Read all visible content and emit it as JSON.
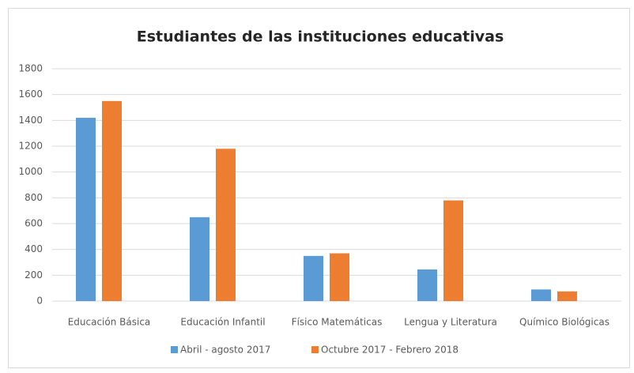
{
  "chart_data": {
    "type": "bar",
    "title": "Estudiantes de las instituciones educativas",
    "categories": [
      "Educación Básica",
      "Educación Infantil",
      "Físico Matemáticas",
      "Lengua y Literatura",
      "Químico Biológicas"
    ],
    "series": [
      {
        "name": "Abril - agosto 2017",
        "color": "#5b9bd5",
        "values": [
          1420,
          650,
          350,
          245,
          90
        ]
      },
      {
        "name": "Octubre 2017 - Febrero 2018",
        "color": "#ed7d31",
        "values": [
          1550,
          1180,
          370,
          780,
          75
        ]
      }
    ],
    "ylim": [
      0,
      1800
    ],
    "yticks": [
      0,
      200,
      400,
      600,
      800,
      1000,
      1200,
      1400,
      1600,
      1800
    ],
    "grid": true,
    "legend": "bottom"
  }
}
